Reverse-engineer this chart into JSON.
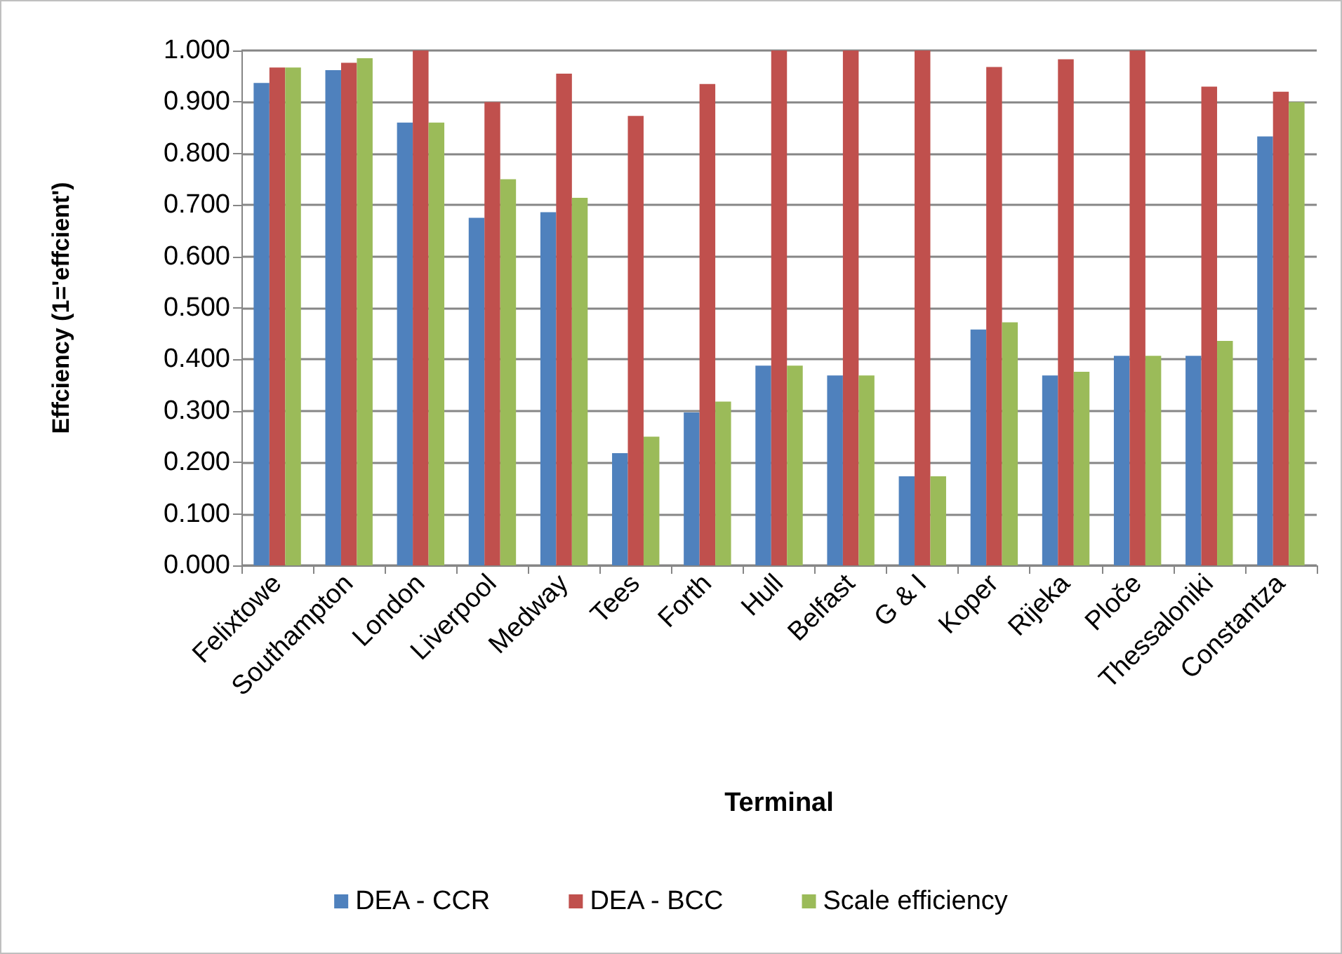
{
  "chart_data": {
    "type": "bar",
    "xlabel": "Terminal",
    "ylabel": "Effciency (1='effcient')",
    "categories": [
      "Felixtowe",
      "Southampton",
      "London",
      "Liverpool",
      "Medway",
      "Tees",
      "Forth",
      "Hull",
      "Belfast",
      "G & I",
      "Koper",
      "Rijeka",
      "Ploče",
      "Thessaloniki",
      "Constantza"
    ],
    "series": [
      {
        "name": "DEA - CCR",
        "color": "#4f81bd",
        "values": [
          0.937,
          0.962,
          0.86,
          0.675,
          0.686,
          0.218,
          0.297,
          0.388,
          0.369,
          0.173,
          0.458,
          0.369,
          0.407,
          0.407,
          0.833
        ]
      },
      {
        "name": "DEA - BCC",
        "color": "#c0504d",
        "values": [
          0.967,
          0.976,
          1.0,
          0.9,
          0.955,
          0.873,
          0.935,
          1.0,
          1.0,
          1.0,
          0.968,
          0.983,
          1.0,
          0.93,
          0.92
        ]
      },
      {
        "name": "Scale efficiency",
        "color": "#9bbb59",
        "values": [
          0.967,
          0.985,
          0.86,
          0.75,
          0.714,
          0.25,
          0.318,
          0.388,
          0.369,
          0.173,
          0.472,
          0.376,
          0.407,
          0.436,
          0.9
        ]
      }
    ],
    "ylim": [
      0,
      1
    ],
    "yticks": [
      {
        "value": 0,
        "label": "0.000"
      },
      {
        "value": 0.1,
        "label": "0.100"
      },
      {
        "value": 0.2,
        "label": "0.200"
      },
      {
        "value": 0.3,
        "label": "0.300"
      },
      {
        "value": 0.4,
        "label": "0.400"
      },
      {
        "value": 0.5,
        "label": "0.500"
      },
      {
        "value": 0.6,
        "label": "0.600"
      },
      {
        "value": 0.7,
        "label": "0.700"
      },
      {
        "value": 0.8,
        "label": "0.800"
      },
      {
        "value": 0.9,
        "label": "0.900"
      },
      {
        "value": 1,
        "label": "1.000"
      }
    ],
    "grid": "y",
    "legend": "bottom"
  }
}
